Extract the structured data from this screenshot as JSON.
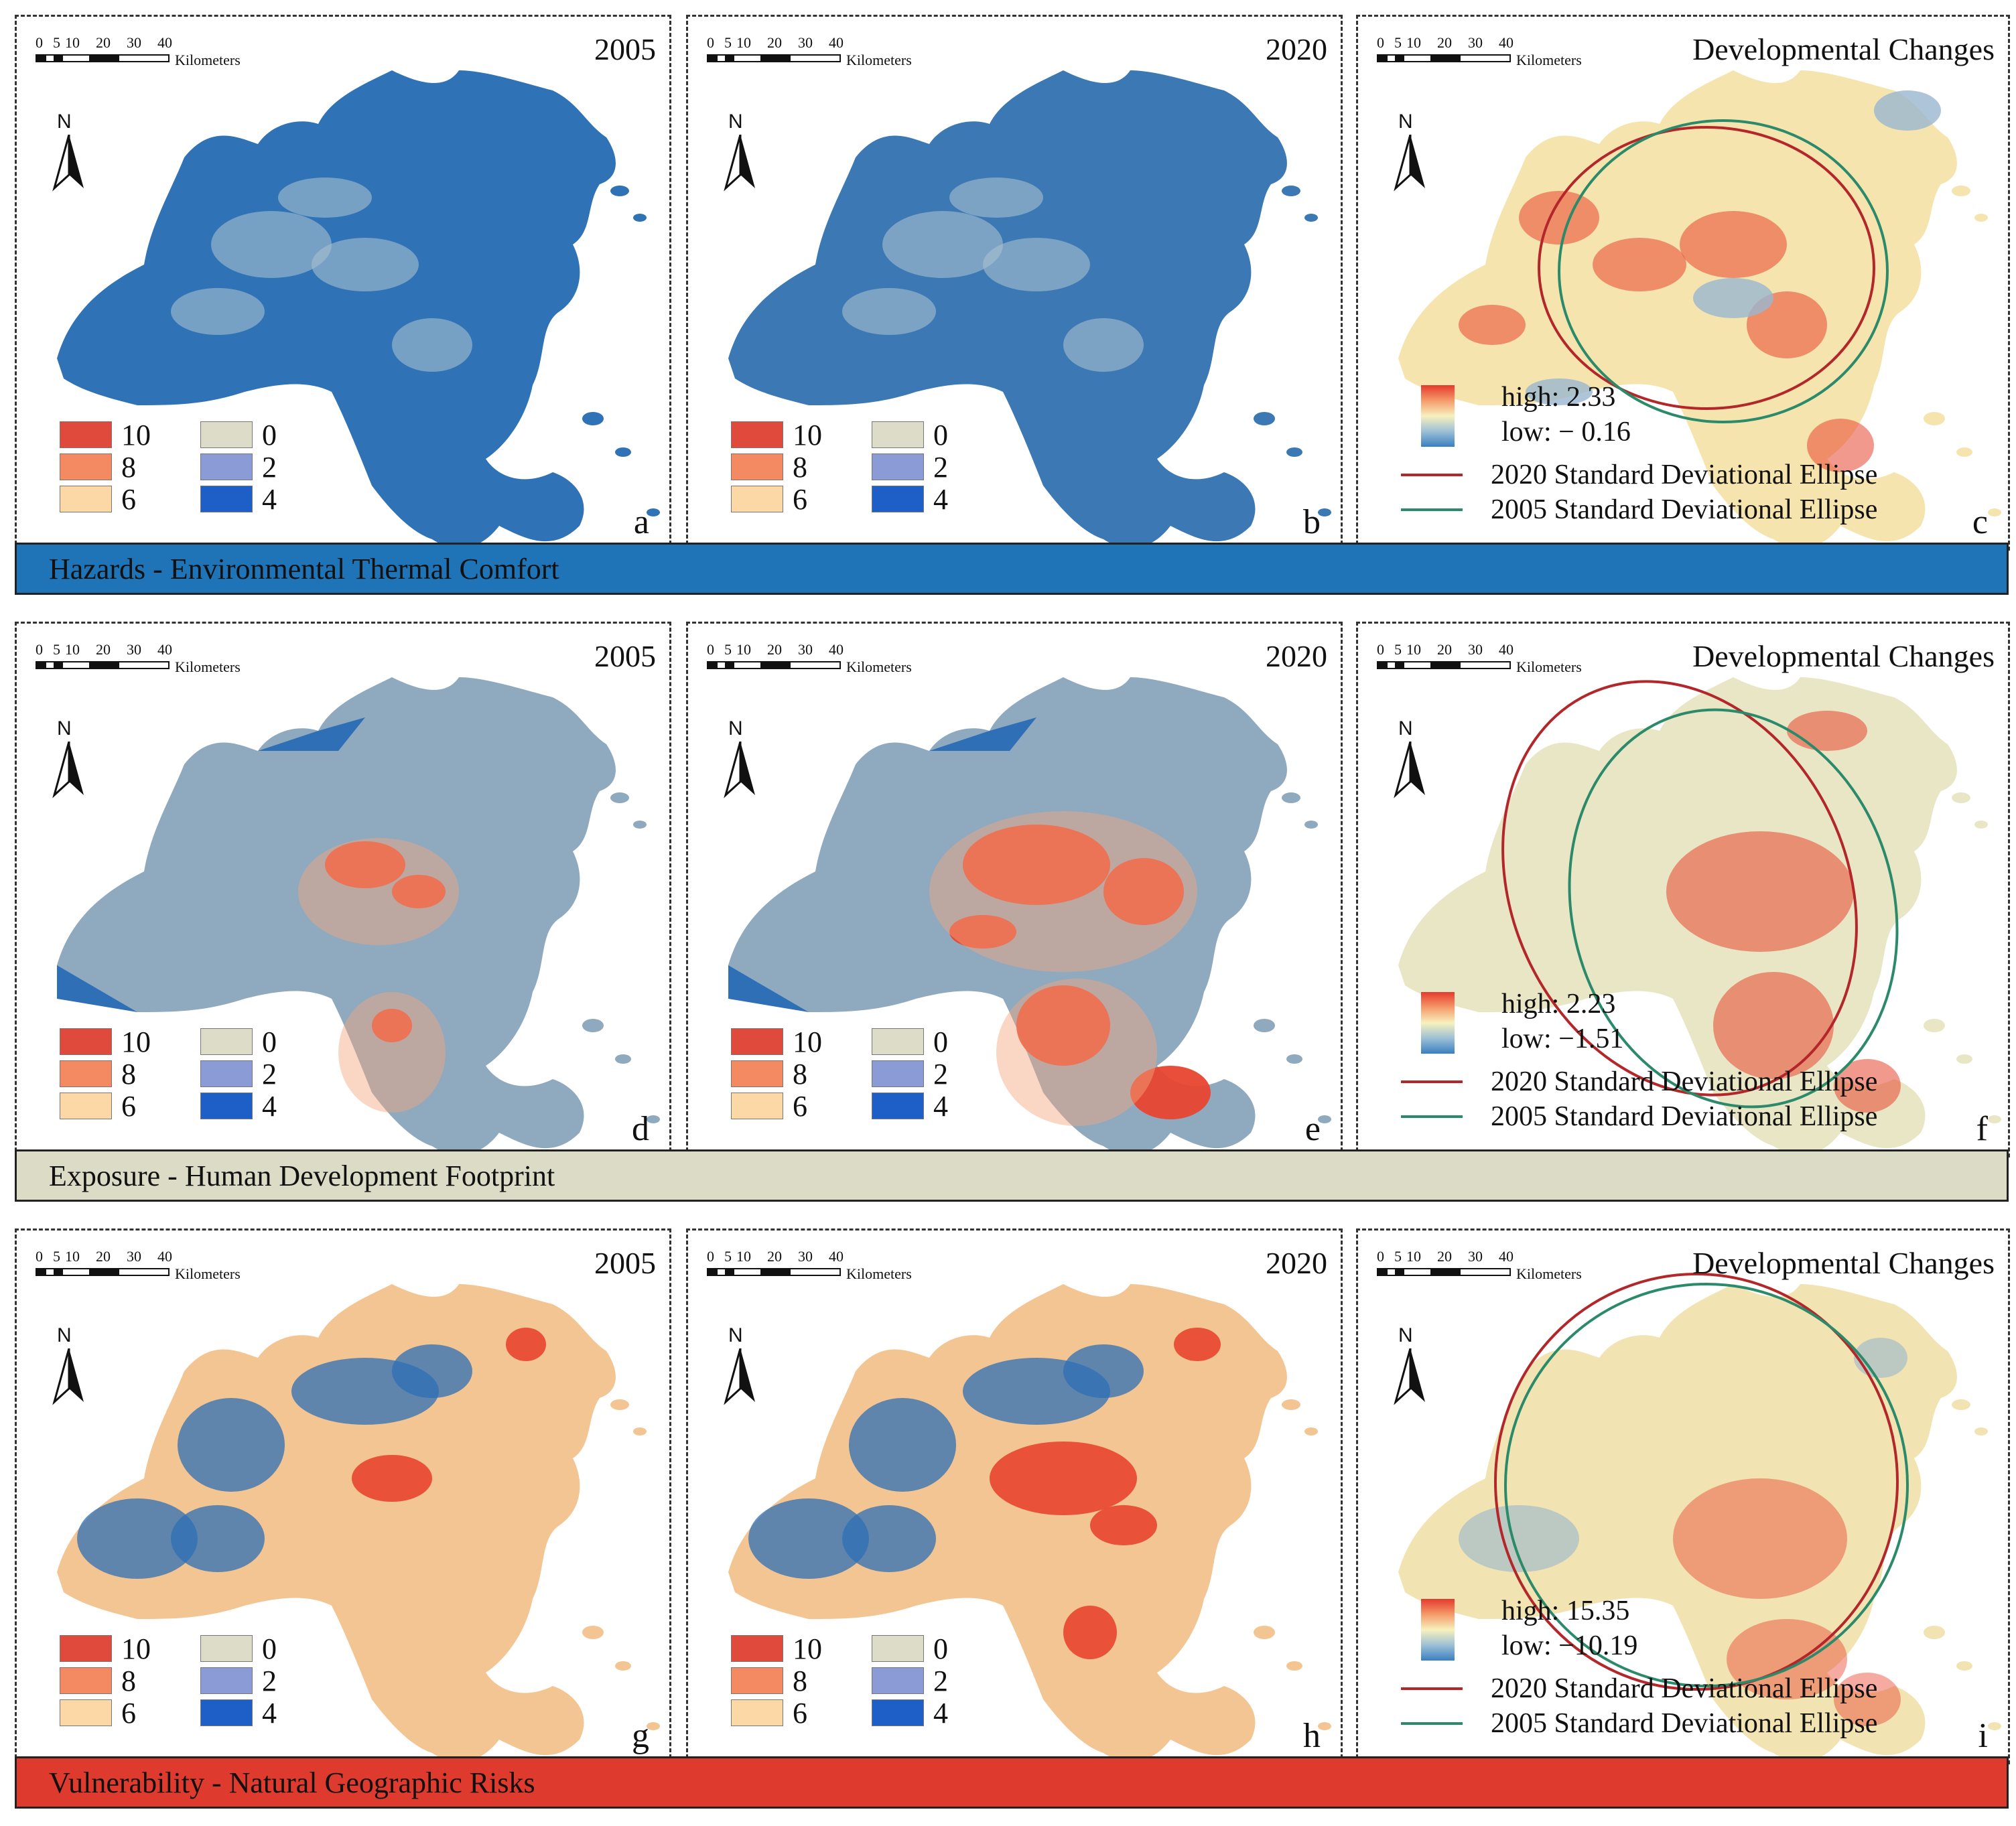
{
  "scale_bar": {
    "ticks": [
      "0",
      "5",
      "10",
      "20",
      "30",
      "40"
    ],
    "unit": "Kilometers"
  },
  "north_label": "N",
  "category_legend": [
    {
      "label": "10",
      "color": "#e04a3c"
    },
    {
      "label": "8",
      "color": "#f38a62"
    },
    {
      "label": "6",
      "color": "#fbd8a6"
    },
    {
      "label": "0",
      "color": "#dcdcc8"
    },
    {
      "label": "2",
      "color": "#8b9bd6"
    },
    {
      "label": "4",
      "color": "#1d5fc7"
    }
  ],
  "ellipse_legend": {
    "e2020": {
      "label": "2020 Standard Deviational Ellipse",
      "color": "#b3272b"
    },
    "e2005": {
      "label": "2005 Standard Deviational Ellipse",
      "color": "#2a8a6a"
    }
  },
  "rows": [
    {
      "band": {
        "label": "Hazards - Environmental Thermal Comfort",
        "color": "#1f73b7"
      },
      "panels": [
        {
          "title": "2005",
          "letter": "a"
        },
        {
          "title": "2020",
          "letter": "b"
        },
        {
          "title": "Developmental Changes",
          "letter": "c",
          "high": "high: 2.33",
          "low": "low:  − 0.16"
        }
      ]
    },
    {
      "band": {
        "label": "Exposure - Human Development Footprint",
        "color": "#dbdbc6"
      },
      "panels": [
        {
          "title": "2005",
          "letter": "d"
        },
        {
          "title": "2020",
          "letter": "e"
        },
        {
          "title": "Developmental Changes",
          "letter": "f",
          "high": "high: 2.23",
          "low": "low:  −1.51"
        }
      ]
    },
    {
      "band": {
        "label": "Vulnerability - Natural Geographic Risks",
        "color": "#de3a2e"
      },
      "panels": [
        {
          "title": "2005",
          "letter": "g"
        },
        {
          "title": "2020",
          "letter": "h"
        },
        {
          "title": "Developmental Changes",
          "letter": "i",
          "high": "high: 15.35",
          "low": "low:  −10.19"
        }
      ]
    }
  ],
  "map_fills": {
    "hazard2005": "#2f72b6",
    "hazard2020": "#3b78b4",
    "hazardChange": "#f6e4ae",
    "exposureBase": "#8fa9bf",
    "exposureChange": "#e9e6c6",
    "vulnBase": "#f3c592",
    "vulnChange": "#f1e3b2",
    "hot": "#e8452f",
    "warm": "#f3a67c",
    "cool": "#9ab7cf",
    "cold": "#2e6fb5"
  }
}
